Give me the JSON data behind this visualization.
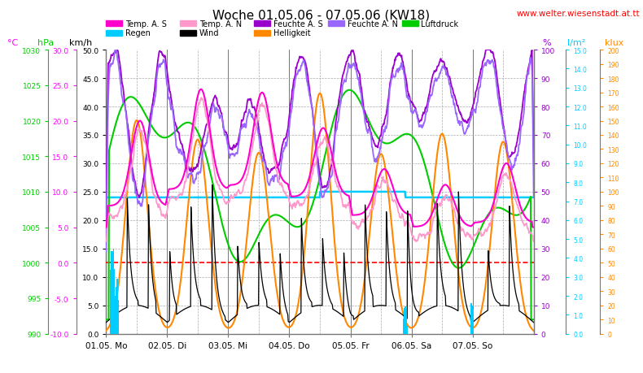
{
  "title": "Woche 01.05.06 - 07.05.06 (KW18)",
  "website": "www.welter.wiesenstadt.at.tt",
  "x_labels": [
    "01.05. Mo",
    "02.05. Di",
    "03.05. Mi",
    "04.05. Do",
    "05.05. Fr",
    "06.05. Sa",
    "07.05. So"
  ],
  "temp_color_s": "#ff00cc",
  "temp_color_n": "#ff99cc",
  "humid_color_s": "#9900cc",
  "humid_color_n": "#9966ff",
  "luftdruck_color": "#00cc00",
  "wind_color": "#000000",
  "helligkeit_color": "#ff8800",
  "regen_color": "#00ccff",
  "red_dash_color": "#ff0000",
  "cyan_line_color": "#00ccff",
  "grid_color": "#aaaaaa",
  "axis_line_color": "#777777",
  "legend_row1": [
    {
      "label": "Temp. A. S",
      "color": "#ff00cc"
    },
    {
      "label": "Temp. A. N",
      "color": "#ff99cc"
    },
    {
      "label": "Feuchte A. S",
      "color": "#9900cc"
    },
    {
      "label": "Feuchte A. N",
      "color": "#9966ff"
    },
    {
      "label": "Luftdruck",
      "color": "#00cc00"
    }
  ],
  "legend_row2": [
    {
      "label": "Regen",
      "color": "#00ccff"
    },
    {
      "label": "Wind",
      "color": "#000000"
    },
    {
      "label": "Helligkeit",
      "color": "#ff8800"
    }
  ],
  "kmh_min": 0,
  "kmh_max": 50,
  "temp_min": -10,
  "temp_max": 30,
  "hpa_min": 990,
  "hpa_max": 1030,
  "pct_min": 0,
  "pct_max": 100,
  "rain_min": 0,
  "rain_max": 15,
  "klux_min": 0,
  "klux_max": 200
}
